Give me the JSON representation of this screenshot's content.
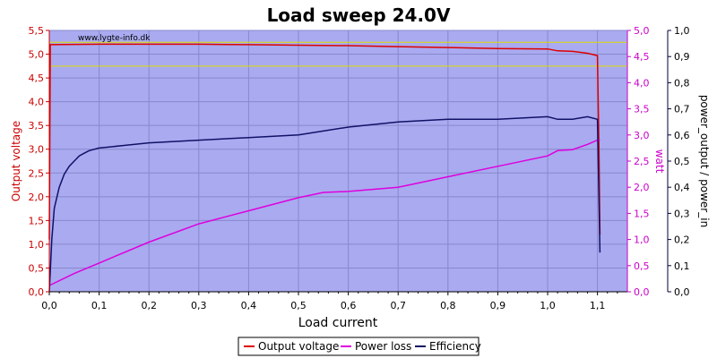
{
  "chart_data": {
    "type": "line",
    "title": "Load sweep 24.0V",
    "watermark": "www.lygte-info.dk",
    "xlabel": "Load current",
    "ylabel_left": "Output voltage",
    "ylabel_right1": "watt",
    "ylabel_right2": "power_output / power_in",
    "xlim": [
      0,
      1.16
    ],
    "ylim_left": [
      0,
      5.5
    ],
    "ylim_right1": [
      0,
      5.0
    ],
    "ylim_right2": [
      0,
      1.0
    ],
    "x_ticks": [
      "0,0",
      "0,1",
      "0,2",
      "0,3",
      "0,4",
      "0,5",
      "0,6",
      "0,7",
      "0,8",
      "0,9",
      "1,0",
      "1,1"
    ],
    "y_left_ticks": [
      "0,0",
      "0,5",
      "1,0",
      "1,5",
      "2,0",
      "2,5",
      "3,0",
      "3,5",
      "4,0",
      "4,5",
      "5,0",
      "5,5"
    ],
    "y_right1_ticks": [
      "0,0",
      "0,5",
      "1,0",
      "1,5",
      "2,0",
      "2,5",
      "3,0",
      "3,5",
      "4,0",
      "4,5",
      "5,0"
    ],
    "y_right2_ticks": [
      "0,0",
      "0,1",
      "0,2",
      "0,3",
      "0,4",
      "0,5",
      "0,6",
      "0,7",
      "0,8",
      "0,9",
      "1,0"
    ],
    "reference_lines_left": [
      5.25,
      4.75
    ],
    "grid": true,
    "legend_position": "bottom",
    "colors": {
      "plot_bg": "#a9aaf0",
      "grid": "#8888cc",
      "voltage": "#dd0000",
      "power_loss": "#dd00dd",
      "efficiency": "#111166",
      "reference": "#dddd00",
      "left_axis": "#cc0000",
      "right1_axis": "#cc00cc",
      "right2_axis": "#000033"
    },
    "series": [
      {
        "name": "Output voltage",
        "axis": "left",
        "x": [
          0,
          0.002,
          0.1,
          0.2,
          0.3,
          0.4,
          0.5,
          0.6,
          0.7,
          0.8,
          0.9,
          1.0,
          1.02,
          1.05,
          1.08,
          1.1,
          1.103,
          1.105
        ],
        "y": [
          1.1,
          5.2,
          5.21,
          5.21,
          5.21,
          5.2,
          5.19,
          5.18,
          5.16,
          5.14,
          5.12,
          5.11,
          5.07,
          5.06,
          5.02,
          4.97,
          3.0,
          1.2
        ]
      },
      {
        "name": "Power loss",
        "axis": "right1",
        "x": [
          0,
          0.05,
          0.1,
          0.2,
          0.3,
          0.4,
          0.5,
          0.55,
          0.6,
          0.7,
          0.8,
          0.9,
          1.0,
          1.02,
          1.05,
          1.08,
          1.1,
          1.105
        ],
        "y": [
          0.12,
          0.35,
          0.55,
          0.95,
          1.3,
          1.55,
          1.8,
          1.9,
          1.92,
          2.0,
          2.2,
          2.4,
          2.6,
          2.7,
          2.72,
          2.82,
          2.9,
          2.9
        ]
      },
      {
        "name": "Efficiency",
        "axis": "right2",
        "x": [
          0,
          0.005,
          0.01,
          0.02,
          0.03,
          0.04,
          0.05,
          0.06,
          0.07,
          0.08,
          0.1,
          0.15,
          0.2,
          0.3,
          0.4,
          0.5,
          0.6,
          0.7,
          0.8,
          0.9,
          1.0,
          1.02,
          1.05,
          1.08,
          1.1,
          1.105
        ],
        "y": [
          0.0,
          0.2,
          0.32,
          0.4,
          0.45,
          0.48,
          0.5,
          0.52,
          0.53,
          0.54,
          0.55,
          0.56,
          0.57,
          0.58,
          0.59,
          0.6,
          0.63,
          0.65,
          0.66,
          0.66,
          0.67,
          0.66,
          0.66,
          0.67,
          0.66,
          0.15
        ]
      }
    ]
  }
}
